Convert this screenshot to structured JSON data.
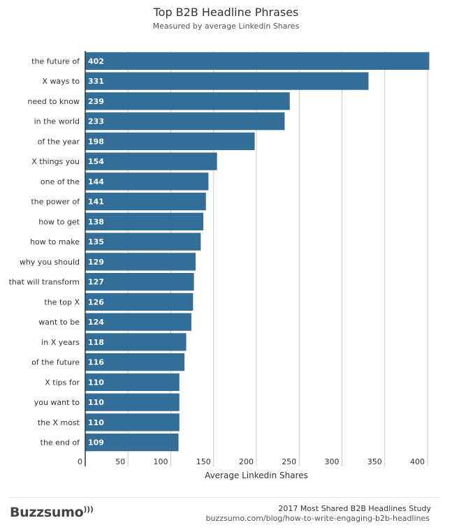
{
  "chart_data": {
    "type": "bar",
    "orientation": "horizontal",
    "title": "Top B2B Headline Phrases",
    "subtitle": "Measured by average Linkedin Shares",
    "xlabel": "Average Linkedin Shares",
    "ylabel": "",
    "xlim": [
      0,
      400
    ],
    "xticks": [
      0,
      50,
      100,
      150,
      200,
      250,
      300,
      350,
      400
    ],
    "grid": true,
    "bar_color": "#336e99",
    "data_labels": true,
    "categories": [
      "the future of",
      "X ways to",
      "need to know",
      "in the world",
      "of the year",
      "X things you",
      "one of the",
      "the power of",
      "how to get",
      "how to make",
      "why you should",
      "that will transform",
      "the top X",
      "want to be",
      "in X years",
      "of the future",
      "X tips for",
      "you want to",
      "the X most",
      "the end of"
    ],
    "values": [
      402,
      331,
      239,
      233,
      198,
      154,
      144,
      141,
      138,
      135,
      129,
      127,
      126,
      124,
      118,
      116,
      110,
      110,
      110,
      109
    ]
  },
  "footer": {
    "logo": "Buzzsumo",
    "study": "2017 Most Shared B2B Headlines Study",
    "url": "buzzsumo.com/blog/how-to-write-engaging-b2b-headlines"
  }
}
